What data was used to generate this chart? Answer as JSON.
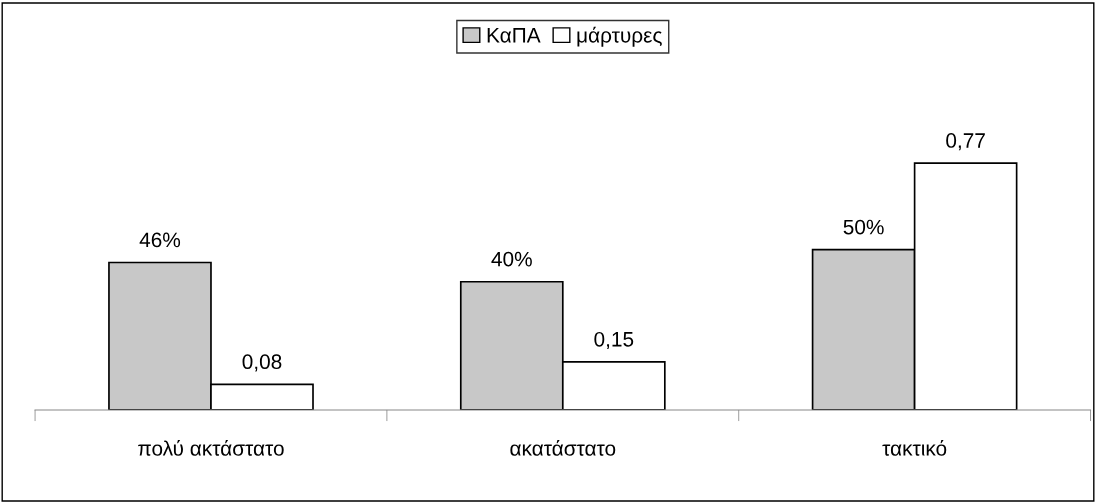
{
  "chart_data": {
    "type": "bar",
    "tick_labels": "x",
    "categories": [
      "πολύ ακτάστατο",
      "ακατάστατο",
      "τακτικό"
    ],
    "series": [
      {
        "name": "ΚαΠΑ",
        "color": "#c8c8c8",
        "values": [
          0.46,
          0.4,
          0.5
        ],
        "value_labels": [
          "46%",
          "40%",
          "50%"
        ]
      },
      {
        "name": "μάρτυρες",
        "color": "#ffffff",
        "values": [
          0.08,
          0.15,
          0.77
        ],
        "value_labels": [
          "0,08",
          "0,15",
          "0,77"
        ]
      }
    ],
    "legend": "top",
    "grid": false
  }
}
